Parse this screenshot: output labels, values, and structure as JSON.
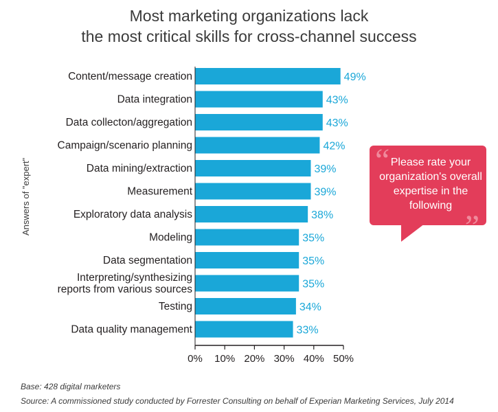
{
  "title": {
    "line1": "Most marketing organizations lack",
    "line2": "the most critical skills for cross-channel success"
  },
  "y_axis_label": "Answers of \"expert\"",
  "callout": {
    "text": "Please rate your organization's overall expertise in the following",
    "open_quote": "“",
    "close_quote": "”"
  },
  "footnotes": {
    "base": "Base: 428 digital marketers",
    "source": "Source: A commissioned study conducted by Forrester Consulting on behalf of Experian Marketing Services, July 2014"
  },
  "colors": {
    "bar": "#1aa7d8",
    "value_label": "#1aa7d8",
    "callout": "#e33d5a"
  },
  "chart_data": {
    "type": "bar",
    "orientation": "horizontal",
    "categories": [
      [
        "Content/message creation"
      ],
      [
        "Data integration"
      ],
      [
        "Data collecton/aggregation"
      ],
      [
        "Campaign/scenario planning"
      ],
      [
        "Data mining/extraction"
      ],
      [
        "Measurement"
      ],
      [
        "Exploratory data analysis"
      ],
      [
        "Modeling"
      ],
      [
        "Data segmentation"
      ],
      [
        "Interpreting/synthesizing",
        "reports from various sources"
      ],
      [
        "Testing"
      ],
      [
        "Data quality management"
      ]
    ],
    "values": [
      49,
      43,
      43,
      42,
      39,
      39,
      38,
      35,
      35,
      35,
      34,
      33
    ],
    "value_labels": [
      "49%",
      "43%",
      "43%",
      "42%",
      "39%",
      "39%",
      "38%",
      "35%",
      "35%",
      "35%",
      "34%",
      "33%"
    ],
    "xlim": [
      0,
      50
    ],
    "x_ticks": [
      "0%",
      "10%",
      "20%",
      "30%",
      "40%",
      "50%"
    ],
    "grid": false
  }
}
